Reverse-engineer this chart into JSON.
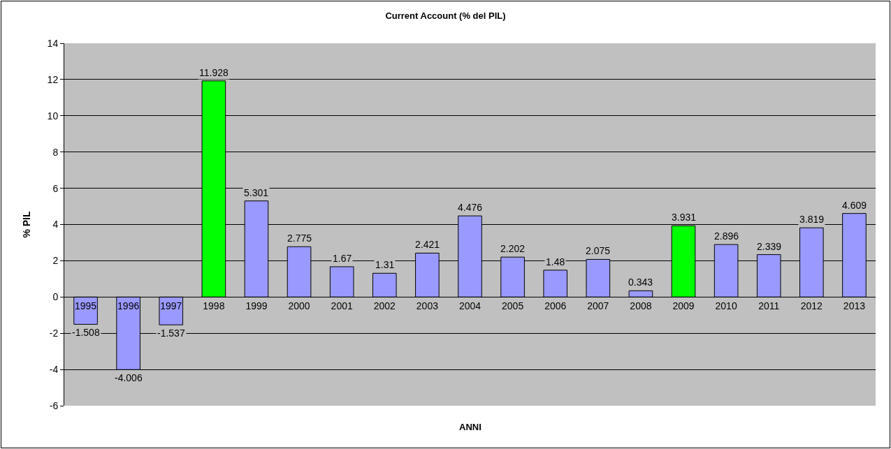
{
  "chart_data": {
    "type": "bar",
    "title": "Current Account (% del PIL)",
    "xlabel": "ANNI",
    "ylabel": "% PIL",
    "categories": [
      "1995",
      "1996",
      "1997",
      "1998",
      "1999",
      "2000",
      "2001",
      "2002",
      "2003",
      "2004",
      "2005",
      "2006",
      "2007",
      "2008",
      "2009",
      "2010",
      "2011",
      "2012",
      "2013"
    ],
    "values": [
      -1.508,
      -4.006,
      -1.537,
      11.928,
      5.301,
      2.775,
      1.67,
      1.31,
      2.421,
      4.476,
      2.202,
      1.48,
      2.075,
      0.343,
      3.931,
      2.896,
      2.339,
      3.819,
      4.609
    ],
    "colors": [
      "#9999ff",
      "#9999ff",
      "#9999ff",
      "#00ff00",
      "#9999ff",
      "#9999ff",
      "#9999ff",
      "#9999ff",
      "#9999ff",
      "#9999ff",
      "#9999ff",
      "#9999ff",
      "#9999ff",
      "#9999ff",
      "#00ff00",
      "#9999ff",
      "#9999ff",
      "#9999ff",
      "#9999ff"
    ],
    "ylim": [
      -6,
      14
    ],
    "yticks": [
      -6,
      -4,
      -2,
      0,
      2,
      4,
      6,
      8,
      10,
      12,
      14
    ],
    "grid": true,
    "data_labels": true
  }
}
